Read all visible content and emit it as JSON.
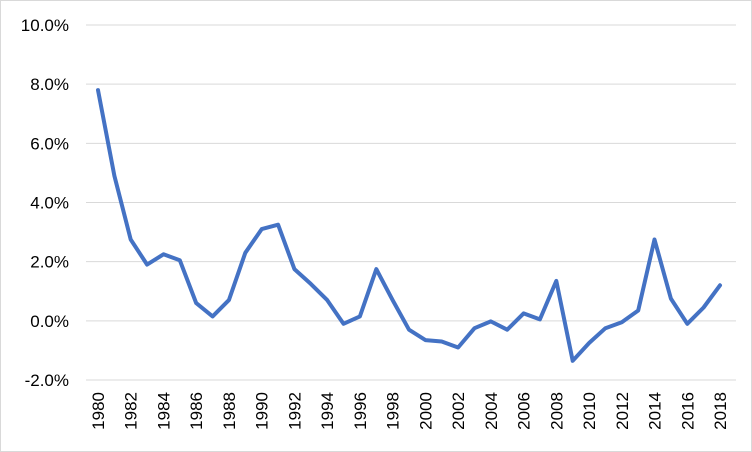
{
  "chart_data": {
    "type": "line",
    "title": "",
    "xlabel": "",
    "ylabel": "",
    "x": [
      1980,
      1981,
      1982,
      1983,
      1984,
      1985,
      1986,
      1987,
      1988,
      1989,
      1990,
      1991,
      1992,
      1993,
      1994,
      1995,
      1996,
      1997,
      1998,
      1999,
      2000,
      2001,
      2002,
      2003,
      2004,
      2005,
      2006,
      2007,
      2008,
      2009,
      2010,
      2011,
      2012,
      2013,
      2014,
      2015,
      2016,
      2017,
      2018
    ],
    "x_tick_labels": [
      "1980",
      "1982",
      "1984",
      "1986",
      "1988",
      "1990",
      "1992",
      "1994",
      "1996",
      "1998",
      "2000",
      "2002",
      "2004",
      "2006",
      "2008",
      "2010",
      "2012",
      "2014",
      "2016",
      "2018"
    ],
    "y_tick_labels": [
      "10.0%",
      "8.0%",
      "6.0%",
      "4.0%",
      "2.0%",
      "0.0%",
      "-2.0%"
    ],
    "y_ticks": [
      10,
      8,
      6,
      4,
      2,
      0,
      -2
    ],
    "ylim": [
      -2,
      10
    ],
    "grid": true,
    "legend": "none",
    "series": [
      {
        "color": "#4472c4",
        "values": [
          7.8,
          4.9,
          2.75,
          1.9,
          2.25,
          2.05,
          0.6,
          0.15,
          0.7,
          2.3,
          3.1,
          3.25,
          1.75,
          1.25,
          0.7,
          -0.1,
          0.15,
          1.75,
          0.7,
          -0.3,
          -0.65,
          -0.7,
          -0.9,
          -0.25,
          -0.02,
          -0.3,
          0.25,
          0.05,
          1.35,
          -1.35,
          -0.75,
          -0.25,
          -0.05,
          0.35,
          2.75,
          0.75,
          -0.1,
          0.45,
          1.2
        ]
      }
    ]
  }
}
